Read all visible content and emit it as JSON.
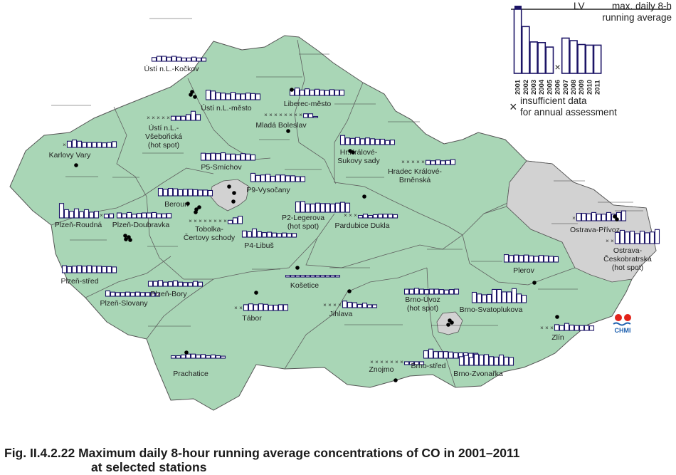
{
  "caption": {
    "line1": "Fig. II.4.2.22  Maximum daily 8-hour running average concentrations of CO in 2001–2011",
    "line2": "at selected stations"
  },
  "legend": {
    "lv_label": "LV",
    "value_label_1": "max. daily 8-h",
    "value_label_2": "running average",
    "years": [
      "2001",
      "2002",
      "2003",
      "2004",
      "2005",
      "2006",
      "2007",
      "2008",
      "2009",
      "2010",
      "2011"
    ],
    "sample_values": [
      1.0,
      0.73,
      0.49,
      0.48,
      0.41,
      null,
      0.55,
      0.51,
      0.45,
      0.44,
      0.44
    ],
    "insufficient_1": "insufficient data",
    "insufficient_2": "for annual assessment"
  },
  "logo": {
    "text": "CHMI"
  },
  "colors": {
    "country_fill": "#a9d6b6",
    "urban_fill": "#d2d2d2",
    "bar_stroke": "#1c1466",
    "lv_marker": "#1c1466",
    "station_dot": "#000000",
    "logo_red": "#e2231a",
    "logo_blue": "#1c5fae"
  },
  "stations": [
    {
      "label": [
        "Ústí n.L.-Kočkov"
      ],
      "values": [
        0.09,
        0.12,
        0.12,
        0.1,
        0.12,
        0.1,
        0.08,
        0.08,
        0.1,
        0.08,
        0.08
      ],
      "nd": []
    },
    {
      "label": [
        "Ústí n.L.-město"
      ],
      "values": [
        0.23,
        0.21,
        0.17,
        0.16,
        0.14,
        0.18,
        0.14,
        0.14,
        0.16,
        0.15,
        0.14
      ],
      "nd": []
    },
    {
      "label": [
        "Ústí n.L.-",
        "Všebořická",
        "(hot spot)"
      ],
      "values": [
        null,
        null,
        null,
        null,
        null,
        0.1,
        0.1,
        0.1,
        0.14,
        0.22,
        0.14
      ],
      "nd": [
        0,
        1,
        2,
        3,
        4
      ]
    },
    {
      "label": [
        "Liberec-město"
      ],
      "values": [
        0.14,
        0.18,
        0.13,
        0.16,
        0.13,
        0.15,
        0.13,
        0.12,
        0.14,
        0.13,
        0.13
      ],
      "nd": []
    },
    {
      "label": [
        "Mladá Boleslav"
      ],
      "values": [
        null,
        null,
        null,
        null,
        null,
        null,
        null,
        null,
        0.09,
        0.09,
        0.0
      ],
      "nd": [
        0,
        1,
        2,
        3,
        4,
        5,
        6,
        7
      ]
    },
    {
      "label": [
        "Karlovy Vary"
      ],
      "values": [
        null,
        0.15,
        0.18,
        0.15,
        0.12,
        0.12,
        0.12,
        0.12,
        0.11,
        0.12,
        0.14
      ],
      "nd": [
        0
      ]
    },
    {
      "label": [
        "P5-Smíchov"
      ],
      "values": [
        0.17,
        0.16,
        0.17,
        0.16,
        0.18,
        0.15,
        0.15,
        0.13,
        0.16,
        0.15,
        0.13
      ],
      "nd": []
    },
    {
      "label": [
        "Hr.Králové-",
        "Sukovy sady"
      ],
      "values": [
        0.22,
        0.16,
        0.15,
        0.17,
        0.14,
        0.16,
        0.14,
        0.13,
        0.13,
        0.1,
        0.11
      ],
      "nd": []
    },
    {
      "label": [
        "Hradec Králové-",
        "Brněnská"
      ],
      "values": [
        null,
        null,
        null,
        null,
        null,
        0.1,
        0.09,
        0.11,
        0.09,
        0.1,
        0.12
      ],
      "nd": [
        0,
        1,
        2,
        3,
        4
      ]
    },
    {
      "label": [
        "P9-Vysočany"
      ],
      "values": [
        0.2,
        0.15,
        0.16,
        0.18,
        0.13,
        0.16,
        0.16,
        0.14,
        0.14,
        0.12,
        0.12
      ],
      "nd": []
    },
    {
      "label": [
        "Beroun"
      ],
      "values": [
        0.18,
        0.16,
        0.18,
        0.17,
        0.15,
        0.16,
        0.16,
        0.15,
        0.14,
        0.14,
        0.13
      ],
      "nd": []
    },
    {
      "label": [
        "P2-Legerova",
        "(hot spot)"
      ],
      "values": [
        0.25,
        0.26,
        0.2,
        0.2,
        0.22,
        0.21,
        0.21,
        0.2,
        0.22,
        0.24,
        0.22
      ],
      "nd": []
    },
    {
      "label": [
        "Tobolka-",
        "Čertovy schody"
      ],
      "values": [
        null,
        null,
        null,
        null,
        null,
        null,
        null,
        null,
        0.08,
        0.14,
        0.18
      ],
      "nd": [
        0,
        1,
        2,
        3,
        4,
        5,
        6,
        7
      ]
    },
    {
      "label": [
        "Plzeň-Roudná"
      ],
      "values": [
        0.35,
        0.2,
        0.16,
        0.22,
        0.15,
        0.2,
        0.14,
        0.16,
        null,
        0.09,
        0.1
      ],
      "nd": [
        8
      ]
    },
    {
      "label": [
        "Plzeň-Doubravka"
      ],
      "values": [
        0.12,
        0.1,
        0.13,
        0.09,
        0.11,
        0.12,
        0.12,
        0.13,
        0.1,
        0.1,
        0.11
      ],
      "nd": []
    },
    {
      "label": [
        "Pardubice Dukla"
      ],
      "values": [
        null,
        null,
        null,
        0.06,
        0.09,
        0.06,
        0.08,
        0.09,
        0.09,
        0.09,
        0.08
      ],
      "nd": [
        0,
        1,
        2
      ]
    },
    {
      "label": [
        "P4-Libuš"
      ],
      "values": [
        0.15,
        0.13,
        0.2,
        0.13,
        0.11,
        0.12,
        0.1,
        0.09,
        0.1,
        0.09,
        0.09
      ],
      "nd": []
    },
    {
      "label": [
        "Ostrava-Přívoz"
      ],
      "values": [
        null,
        0.18,
        0.18,
        0.17,
        0.2,
        0.16,
        0.16,
        0.2,
        0.16,
        0.2,
        0.24
      ],
      "nd": [
        0
      ]
    },
    {
      "label": [
        "Ostrava-",
        "Českobratrská",
        "(hot spot)"
      ],
      "values": [
        null,
        null,
        0.27,
        0.32,
        0.28,
        0.3,
        0.24,
        0.3,
        0.26,
        0.28,
        0.34
      ],
      "nd": [
        0,
        1
      ]
    },
    {
      "label": [
        "Plzeň-střed"
      ],
      "values": [
        0.17,
        0.15,
        0.16,
        0.17,
        0.16,
        0.17,
        0.16,
        0.16,
        0.15,
        0.15,
        0.14
      ],
      "nd": []
    },
    {
      "label": [
        "Plzeň-Slovany"
      ],
      "values": [
        0.13,
        0.1,
        0.09,
        0.09,
        0.1,
        0.09,
        0.1,
        0.09,
        0.09,
        0.09,
        0.08
      ],
      "nd": []
    },
    {
      "label": [
        "Plzeň-Bory"
      ],
      "values": [
        0.12,
        0.12,
        0.14,
        0.1,
        0.11,
        0.13,
        0.1,
        0.09,
        0.09,
        0.12,
        0.1
      ],
      "nd": []
    },
    {
      "label": [
        "Košetice"
      ],
      "values": [
        0.04,
        0.04,
        0.04,
        0.04,
        0.04,
        0.04,
        0.04,
        0.04,
        0.04,
        0.04,
        0.04
      ],
      "nd": []
    },
    {
      "label": [
        "Plerov"
      ],
      "values": [
        0.18,
        0.16,
        0.17,
        0.16,
        0.17,
        0.15,
        0.14,
        0.16,
        0.15,
        0.14,
        0.13
      ],
      "nd": []
    },
    {
      "label": [
        "Tábor"
      ],
      "values": [
        null,
        null,
        0.14,
        0.16,
        0.14,
        0.16,
        0.15,
        0.13,
        0.13,
        0.14,
        0.14
      ],
      "nd": [
        0,
        1
      ]
    },
    {
      "label": [
        "Jihlava"
      ],
      "values": [
        null,
        null,
        null,
        null,
        0.16,
        0.13,
        0.12,
        0.08,
        0.11,
        0.07,
        0.07
      ],
      "nd": [
        0,
        1,
        2,
        3
      ]
    },
    {
      "label": [
        "Brno-Úvoz",
        "(hot spot)"
      ],
      "values": [
        0.12,
        0.12,
        0.14,
        0.12,
        0.11,
        0.12,
        0.12,
        0.11,
        0.1,
        0.11,
        0.12
      ],
      "nd": []
    },
    {
      "label": [
        "Brno-Svatoplukova"
      ],
      "values": [
        0.25,
        0.21,
        0.19,
        0.2,
        0.32,
        0.32,
        0.26,
        0.26,
        0.34,
        0.21,
        0.18
      ],
      "nd": []
    },
    {
      "label": [
        "Zlín"
      ],
      "values": [
        null,
        null,
        null,
        0.14,
        0.12,
        0.17,
        0.13,
        0.12,
        0.12,
        0.12,
        0.11
      ],
      "nd": [
        0,
        1,
        2
      ]
    },
    {
      "label": [
        "Prachatice"
      ],
      "values": [
        0.06,
        0.06,
        0.08,
        0.1,
        0.1,
        0.08,
        0.09,
        0.06,
        0.08,
        0.06,
        0.05
      ],
      "nd": []
    },
    {
      "label": [
        "Znojmo"
      ],
      "values": [
        null,
        null,
        null,
        null,
        null,
        null,
        null,
        0.07,
        0.07,
        0.07,
        0.07
      ],
      "nd": [
        0,
        1,
        2,
        3,
        4,
        5,
        6
      ]
    },
    {
      "label": [
        "Brno-střed"
      ],
      "values": [
        0.18,
        0.22,
        0.16,
        0.16,
        0.16,
        0.15,
        0.13,
        0.13,
        0.13,
        0.12,
        0.12
      ],
      "nd": []
    },
    {
      "label": [
        "Brno-Zvonařka"
      ],
      "values": [
        0.21,
        0.24,
        0.19,
        0.27,
        0.25,
        0.26,
        0.21,
        0.2,
        0.25,
        0.2,
        0.19
      ],
      "nd": []
    }
  ]
}
